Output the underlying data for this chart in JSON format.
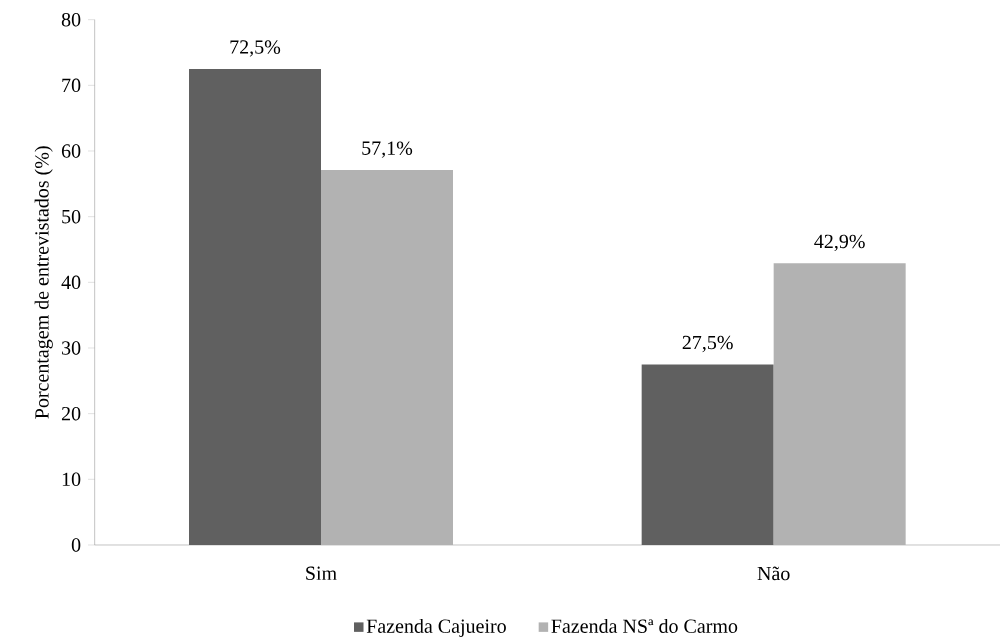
{
  "chart_data": {
    "type": "bar",
    "ylabel": "Porcentagem de entrevistados (%)",
    "categories": [
      "Sim",
      "Não"
    ],
    "series": [
      {
        "name": "Fazenda Cajueiro",
        "color": "#606060",
        "values": [
          72.5,
          27.5
        ],
        "value_labels": [
          "72,5%",
          "27,5%"
        ]
      },
      {
        "name": "Fazenda NSª do Carmo",
        "color": "#b2b2b2",
        "values": [
          57.1,
          42.9
        ],
        "value_labels": [
          "57,1%",
          "42,9%"
        ]
      }
    ],
    "ylim": [
      0,
      80
    ],
    "yticks": [
      0,
      10,
      20,
      30,
      40,
      50,
      60,
      70,
      80
    ],
    "legend": "bottom",
    "grid": false
  }
}
